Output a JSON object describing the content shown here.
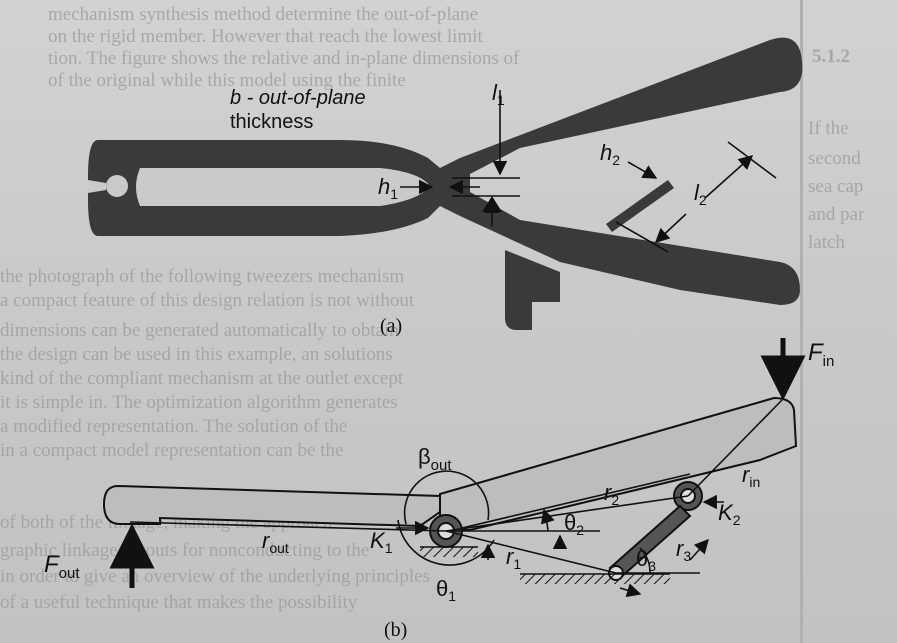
{
  "figure_a": {
    "caption": "(a)",
    "thickness_label": "b - out-of-plane thickness",
    "thickness_line1": "b - out-of-plane",
    "thickness_line2": "thickness",
    "labels": {
      "l1": "l",
      "l1_sub": "1",
      "h1": "h",
      "h1_sub": "1",
      "h2": "h",
      "h2_sub": "2",
      "l2": "l",
      "l2_sub": "2"
    }
  },
  "figure_b": {
    "caption": "(b)",
    "labels": {
      "F_in": "F",
      "F_in_sub": "in",
      "F_out": "F",
      "F_out_sub": "out",
      "beta_out": "β",
      "beta_out_sub": "out",
      "r_out": "r",
      "r_out_sub": "out",
      "r_in": "r",
      "r_in_sub": "in",
      "r1": "r",
      "r1_sub": "1",
      "r2": "r",
      "r2_sub": "2",
      "r3": "r",
      "r3_sub": "3",
      "K1": "K",
      "K1_sub": "1",
      "K2": "K",
      "K2_sub": "2",
      "theta1": "θ",
      "theta1_sub": "1",
      "theta2": "θ",
      "theta2_sub": "2",
      "theta3": "θ",
      "theta3_sub": "3"
    }
  },
  "margin_text": {
    "right_1": "5.1.2",
    "right_2": "If the",
    "right_3": "second",
    "right_4": "sea cap",
    "right_5": "and par",
    "right_6": "latch",
    "left_top_1": "mechanism synthesis method determine the out-of-plane",
    "left_top_2": "on the rigid member. However that reach the lowest limit",
    "left_top_3": "tion. The figure shows the relative and in-plane dimensions of",
    "left_top_4": "of the original while this model using the finite",
    "left_mid_1": "the photograph of the following tweezers mechanism",
    "left_mid_2": "a compact feature of this design relation is not without",
    "left_mid_3": "dimensions can be generated automatically to obtain",
    "left_mid_4": "the design can be used in this example, an solutions",
    "left_mid_5": "kind of the compliant mechanism at the outlet except",
    "left_mid_6": "it is simple in. The optimization algorithm generates",
    "left_mid_7": "a modified representation. The solution of the",
    "left_mid_8": "in a compact model representation can be the",
    "left_mid_9": "of both of the linkage, making the approach",
    "left_mid_10": "graphic linkage layouts for nonconducting to the",
    "left_mid_11": "in order to give an overview of the underlying principles",
    "left_mid_12": "of a useful technique that makes the possibility"
  }
}
